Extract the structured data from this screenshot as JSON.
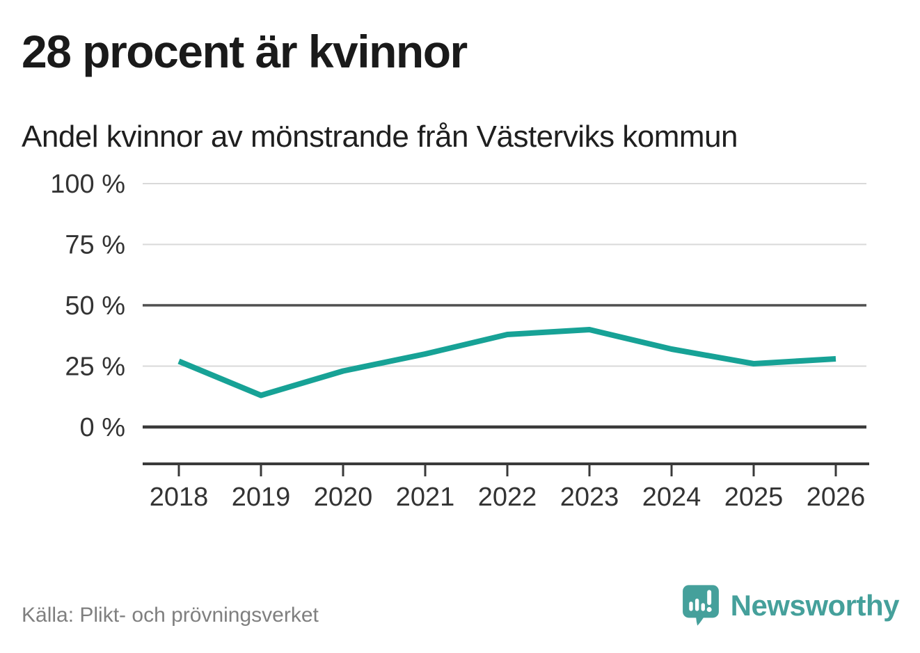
{
  "header": {
    "title": "28 procent är kvinnor",
    "subtitle": "Andel kvinnor av mönstrande från Västerviks kommun"
  },
  "footer": {
    "source": "Källa: Plikt- och prövningsverket",
    "brand": "Newsworthy"
  },
  "colors": {
    "line": "#17a296",
    "logo": "#45a09b",
    "grid_light": "#d9d9d9",
    "grid_mid": "#4f4f4f",
    "axis_dark": "#3a3a3a",
    "axis_text": "#333333",
    "title_text": "#1a1a1a",
    "source_text": "#7f7f7f"
  },
  "chart_data": {
    "type": "line",
    "title": "Andel kvinnor av mönstrande från Västerviks kommun",
    "x": [
      2018,
      2019,
      2020,
      2021,
      2022,
      2023,
      2024,
      2025,
      2026
    ],
    "series": [
      {
        "name": "Andel kvinnor av mönstrande",
        "values": [
          27,
          13,
          23,
          30,
          38,
          40,
          32,
          26,
          28
        ]
      }
    ],
    "unit": "%",
    "xlabel": "",
    "ylabel": "",
    "ylim": [
      0,
      100
    ],
    "yticks": [
      {
        "value": 100,
        "label": "100 %"
      },
      {
        "value": 75,
        "label": "75 %"
      },
      {
        "value": 50,
        "label": "50 %"
      },
      {
        "value": 25,
        "label": "25 %"
      },
      {
        "value": 0,
        "label": "0 %"
      }
    ],
    "emphasized_gridlines": [
      0,
      50
    ],
    "grid": "horizontal",
    "legend": "none"
  }
}
